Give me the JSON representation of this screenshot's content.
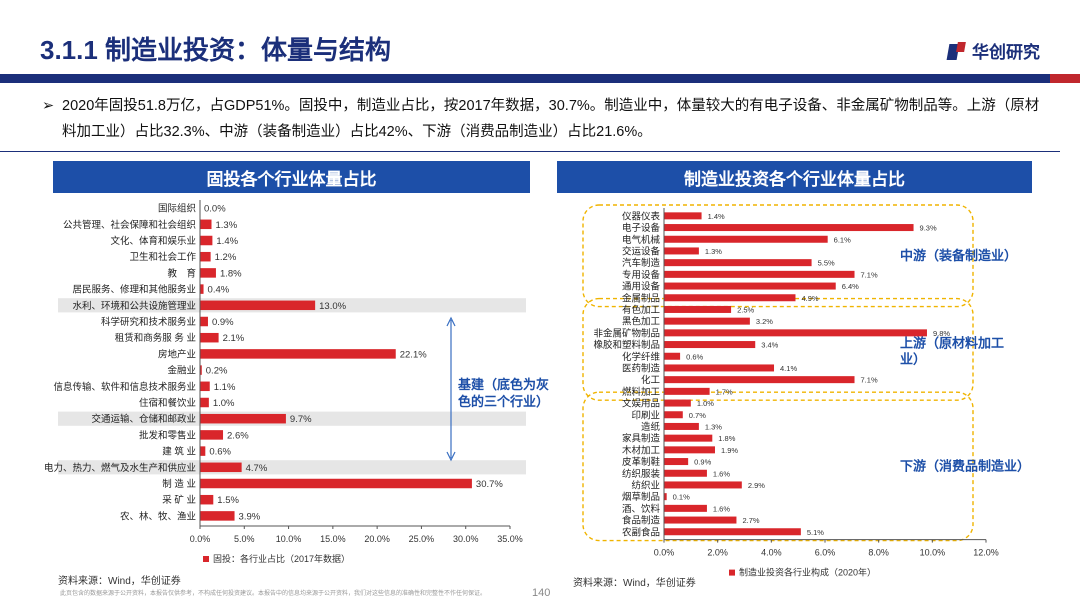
{
  "header": {
    "title": "3.1.1 制造业投资：体量与结构",
    "logo_text": "华创研究"
  },
  "bullet": {
    "symbol": "➢",
    "text": "2020年固投51.8万亿，占GDP51%。固投中，制造业占比，按2017年数据，30.7%。制造业中，体量较大的有电子设备、非金属矿物制品等。上游（原材料加工业）占比32.3%、中游（装备制造业）占比42%、下游（消费品制造业）占比21.6%。"
  },
  "colors": {
    "bar": "#d9262b",
    "header": "#1d4fa8",
    "brand": "#1b2f7a",
    "highlight": "#e6e6e6",
    "bracket": "#f0b400",
    "annotation": "#1d4fa8"
  },
  "chart_data": [
    {
      "type": "bar",
      "orientation": "horizontal",
      "title": "固投各个行业体量占比",
      "categories": [
        "国际组织",
        "公共管理、社会保障和社会组织",
        "文化、体育和娱乐业",
        "卫生和社会工作",
        "教　育",
        "居民服务、修理和其他服务业",
        "水利、环境和公共设施管理业",
        "科学研究和技术服务业",
        "租赁和商务服 务 业",
        "房地产业",
        "金融业",
        "信息传输、软件和信息技术服务业",
        "住宿和餐饮业",
        "交通运输、仓储和邮政业",
        "批发和零售业",
        "建 筑 业",
        "电力、热力、燃气及水生产和供应业",
        "制 造 业",
        "采 矿 业",
        "农、林、牧、渔业"
      ],
      "values": [
        0.0,
        1.3,
        1.4,
        1.2,
        1.8,
        0.4,
        13.0,
        0.9,
        2.1,
        22.1,
        0.2,
        1.1,
        1.0,
        9.7,
        2.6,
        0.6,
        4.7,
        30.7,
        1.5,
        3.9
      ],
      "data_labels": [
        "0.0%",
        "1.3%",
        "1.4%",
        "1.2%",
        "1.8%",
        "0.4%",
        "13.0%",
        "0.9%",
        "2.1%",
        "22.1%",
        "0.2%",
        "1.1%",
        "1.0%",
        "9.7%",
        "2.6%",
        "0.6%",
        "4.7%",
        "30.7%",
        "1.5%",
        "3.9%"
      ],
      "highlighted": [
        "水利、环境和公共设施管理业",
        "交通运输、仓储和邮政业",
        "电力、热力、燃气及水生产和供应业"
      ],
      "xlim": [
        0,
        35
      ],
      "x_ticks": [
        "0.0%",
        "5.0%",
        "10.0%",
        "15.0%",
        "20.0%",
        "25.0%",
        "30.0%",
        "35.0%"
      ],
      "legend": "固投：各行业占比（2017年数据）",
      "annotation": "基建（底色为灰色的三个行业）",
      "source": "资料来源：Wind，华创证券"
    },
    {
      "type": "bar",
      "orientation": "horizontal",
      "title": "制造业投资各个行业体量占比",
      "categories": [
        "仪器仪表",
        "电子设备",
        "电气机械",
        "交运设备",
        "汽车制造",
        "专用设备",
        "通用设备",
        "金属制品",
        "有色加工",
        "黑色加工",
        "非金属矿物制品",
        "橡胶和塑料制品",
        "化学纤维",
        "医药制造",
        "化工",
        "燃料加工",
        "文娱用品",
        "印刷业",
        "造纸",
        "家具制造",
        "木材加工",
        "皮革制鞋",
        "纺织服装",
        "纺织业",
        "烟草制品",
        "酒、饮料",
        "食品制造",
        "农副食品"
      ],
      "values": [
        1.4,
        9.3,
        6.1,
        1.3,
        5.5,
        7.1,
        6.4,
        4.9,
        2.5,
        3.2,
        9.8,
        3.4,
        0.6,
        4.1,
        7.1,
        1.7,
        1.0,
        0.7,
        1.3,
        1.8,
        1.9,
        0.9,
        1.6,
        2.9,
        0.1,
        1.6,
        2.7,
        5.1
      ],
      "data_labels": [
        "1.4%",
        "9.3%",
        "6.1%",
        "1.3%",
        "5.5%",
        "7.1%",
        "6.4%",
        "4.9%",
        "2.5%",
        "3.2%",
        "9.8%",
        "3.4%",
        "0.6%",
        "4.1%",
        "7.1%",
        "1.7%",
        "1.0%",
        "0.7%",
        "1.3%",
        "1.8%",
        "1.9%",
        "0.9%",
        "1.6%",
        "2.9%",
        "0.1%",
        "1.6%",
        "2.7%",
        "5.1%"
      ],
      "groups": [
        {
          "label": "中游（装备制造业）",
          "first": 0,
          "last": 7
        },
        {
          "label": "上游（原材料加工业）",
          "first": 8,
          "last": 15
        },
        {
          "label": "下游（消费品制造业）",
          "first": 16,
          "last": 27
        }
      ],
      "xlim": [
        0,
        12
      ],
      "x_ticks": [
        "0.0%",
        "2.0%",
        "4.0%",
        "6.0%",
        "8.0%",
        "10.0%",
        "12.0%"
      ],
      "legend": "制造业投资各行业构成（2020年）",
      "source": "资料来源：Wind，华创证券"
    }
  ],
  "footer": {
    "disclaimer": "此页包含的数据来源于公开资料，本报告仅供参考，不构成任何投资建议。本报告中的信息均来源于公开资料，我们对这些信息的准确性和完整性不作任何保证。",
    "page_number": "140"
  }
}
